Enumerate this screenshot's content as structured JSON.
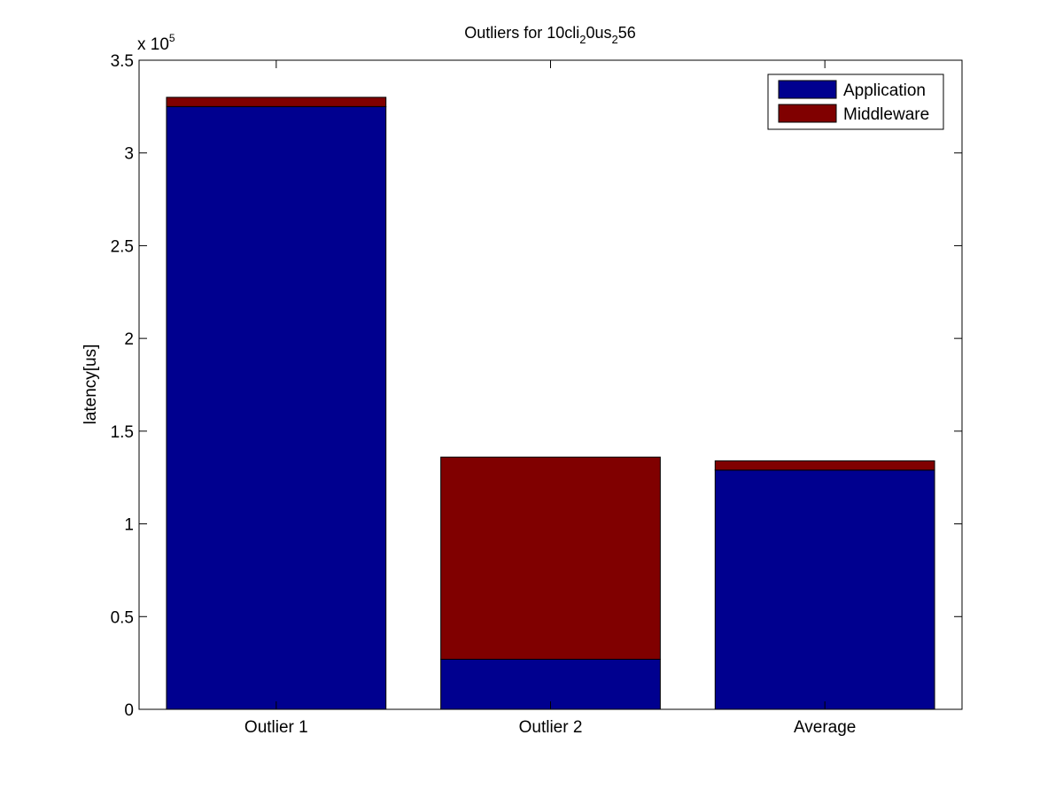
{
  "chart_data": {
    "type": "bar",
    "stacked": true,
    "title": {
      "prefix": "Outliers for 10cli",
      "sub1": "2",
      "mid": "0us",
      "sub2": "2",
      "suffix": "56"
    },
    "xlabel": "",
    "ylabel": "latency[us]",
    "exponent_label": {
      "base": "x 10",
      "power": "5"
    },
    "ylim": [
      0,
      3.5
    ],
    "y_scale_factor": 100000,
    "yticks": [
      0,
      0.5,
      1,
      1.5,
      2,
      2.5,
      3,
      3.5
    ],
    "ytick_labels": [
      "0",
      "0.5",
      "1",
      "1.5",
      "2",
      "2.5",
      "3",
      "3.5"
    ],
    "categories": [
      "Outlier 1",
      "Outlier 2",
      "Average"
    ],
    "series": [
      {
        "name": "Application",
        "color": "#00008F",
        "values": [
          3.25,
          0.27,
          1.29
        ]
      },
      {
        "name": "Middleware",
        "color": "#800000",
        "values": [
          0.05,
          1.09,
          0.05
        ]
      }
    ],
    "legend_position": "top-right",
    "grid": false
  }
}
